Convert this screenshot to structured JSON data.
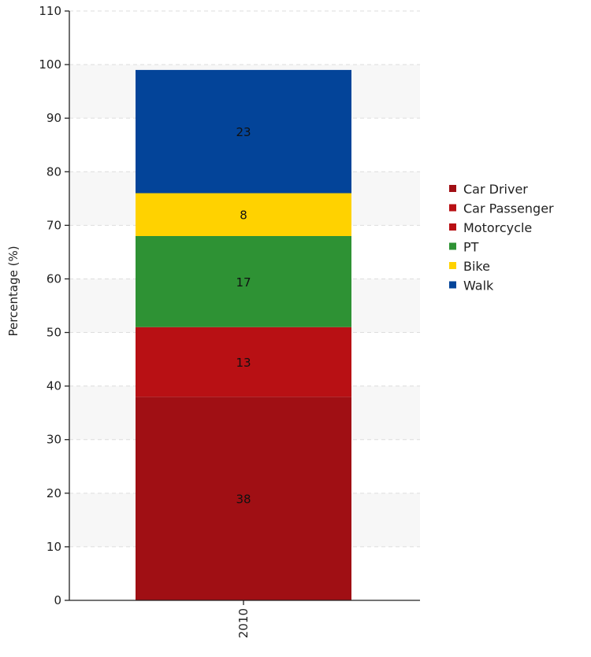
{
  "chart_data": {
    "type": "bar",
    "stacked": true,
    "categories": [
      "2010"
    ],
    "ylabel": "Percentage (%)",
    "xlabel": "",
    "ylim": [
      0,
      110
    ],
    "yticks": [
      0,
      10,
      20,
      30,
      40,
      50,
      60,
      70,
      80,
      90,
      100,
      110
    ],
    "grid": "horizontal dashed, alternating bands",
    "legend_position": "right",
    "series": [
      {
        "name": "Car Driver",
        "values": [
          38
        ],
        "color": "#a00f14",
        "label": "38"
      },
      {
        "name": "Car Passenger",
        "values": [
          0
        ],
        "color": "#b81014",
        "label": ""
      },
      {
        "name": "Motorcycle",
        "values": [
          13
        ],
        "color": "#b81014",
        "label": "13"
      },
      {
        "name": "PT",
        "values": [
          17
        ],
        "color": "#2e9234",
        "label": "17"
      },
      {
        "name": "Bike",
        "values": [
          8
        ],
        "color": "#ffd200",
        "label": "8"
      },
      {
        "name": "Walk",
        "values": [
          23
        ],
        "color": "#034499",
        "label": "23"
      }
    ]
  }
}
